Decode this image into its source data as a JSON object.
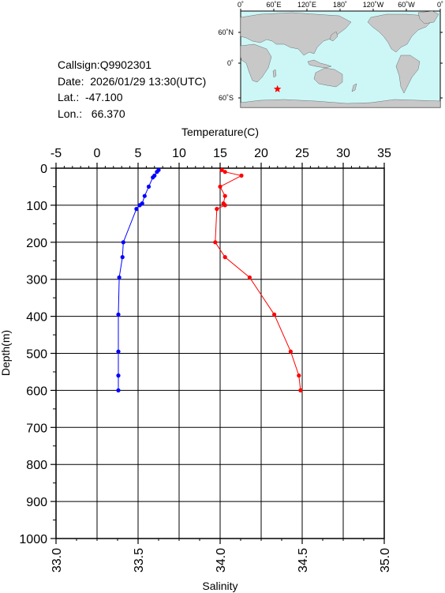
{
  "info": {
    "callsign": "Callsign:Q9902301",
    "date": "Date:  2026/01/29 13:30(UTC)",
    "lat": "Lat.:  -47.100",
    "lon": "Lon.:   66.370"
  },
  "map": {
    "lon_labels": [
      "0˚",
      "60˚E",
      "120˚E",
      "180˚",
      "120˚W",
      "60˚W",
      "0˚"
    ],
    "lat_labels": [
      "60˚N",
      "0˚",
      "60˚S"
    ],
    "ocean_color": "#cdf7f7",
    "land_color": "#c8c8c8",
    "marker_color": "#ff0000",
    "marker_lon": 66.37,
    "marker_lat": -47.1
  },
  "chart_data": {
    "type": "line",
    "ylabel": "Depth(m)",
    "temperature_axis": {
      "title": "Temperature(C)",
      "range": [
        -5,
        35
      ],
      "ticks": [
        -5,
        0,
        5,
        10,
        15,
        20,
        25,
        30,
        35
      ]
    },
    "salinity_axis": {
      "title": "Salinity",
      "range": [
        33.0,
        35.0
      ],
      "ticks": [
        "33.0",
        "33.5",
        "34.0",
        "34.5",
        "35.0"
      ]
    },
    "depth_axis": {
      "range": [
        0,
        1000
      ],
      "ticks": [
        0,
        100,
        200,
        300,
        400,
        500,
        600,
        700,
        800,
        900,
        1000
      ],
      "inverted": true
    },
    "series": [
      {
        "axis": "salinity",
        "color": "#ff0000",
        "depth": [
          5,
          10,
          20,
          50,
          75,
          95,
          100,
          110,
          200,
          240,
          295,
          395,
          495,
          560,
          600
        ],
        "values": [
          34.01,
          34.03,
          34.13,
          34.0,
          34.03,
          34.02,
          34.03,
          33.98,
          33.97,
          34.03,
          34.18,
          34.33,
          34.43,
          34.48,
          34.49
        ]
      },
      {
        "axis": "temperature",
        "color": "#0000ff",
        "depth": [
          5,
          10,
          20,
          25,
          50,
          75,
          95,
          100,
          110,
          200,
          240,
          295,
          395,
          495,
          560,
          600
        ],
        "values": [
          7.5,
          7.3,
          7.0,
          6.8,
          6.3,
          5.8,
          5.5,
          5.2,
          4.8,
          3.2,
          3.1,
          2.7,
          2.6,
          2.6,
          2.6,
          2.6
        ]
      }
    ]
  }
}
